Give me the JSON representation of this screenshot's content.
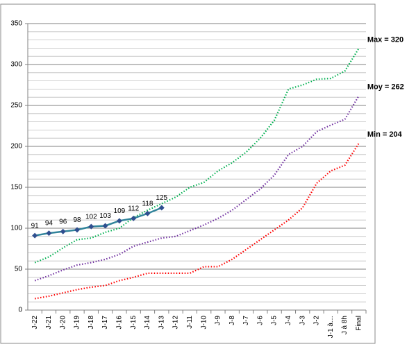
{
  "chart_data": {
    "type": "line",
    "categories": [
      "J-22",
      "J-21",
      "J-20",
      "J-19",
      "J-18",
      "J-17",
      "J-16",
      "J-15",
      "J-14",
      "J-13",
      "J-12",
      "J-11",
      "J-10",
      "J-9",
      "J-8",
      "J-7",
      "J-6",
      "J-5",
      "J-4",
      "J-3",
      "J-2",
      "J-1 à…",
      "J à 8h",
      "Final"
    ],
    "series": [
      {
        "color": "#00b050",
        "dotted": true,
        "end_label": "Max = 320",
        "values": [
          58,
          65,
          76,
          86,
          88,
          95,
          100,
          113,
          122,
          130,
          138,
          150,
          156,
          170,
          180,
          193,
          210,
          232,
          270,
          275,
          282,
          283,
          292,
          320
        ]
      },
      {
        "color": "#7030a0",
        "dotted": true,
        "end_label": "Moy = 262",
        "values": [
          36,
          42,
          49,
          55,
          58,
          62,
          68,
          78,
          83,
          88,
          90,
          97,
          104,
          112,
          122,
          135,
          148,
          165,
          190,
          200,
          218,
          226,
          233,
          262
        ]
      },
      {
        "color": "#ff0000",
        "dotted": true,
        "end_label": "Min = 204",
        "values": [
          14,
          17,
          21,
          25,
          28,
          30,
          36,
          40,
          45,
          45,
          45,
          45,
          53,
          53,
          62,
          74,
          86,
          98,
          110,
          125,
          155,
          170,
          177,
          204
        ]
      },
      {
        "color": "#31849b",
        "marker_color": "#2f4f8f",
        "dotted": false,
        "data_labels": true,
        "values": [
          91,
          94,
          96,
          98,
          102,
          103,
          109,
          112,
          118,
          125,
          null,
          null,
          null,
          null,
          null,
          null,
          null,
          null,
          null,
          null,
          null,
          null,
          null,
          null
        ]
      }
    ],
    "ylim": [
      0,
      350
    ],
    "yticks": [
      0,
      50,
      100,
      150,
      200,
      250,
      300,
      350
    ],
    "yminorticks": [
      10,
      20,
      30,
      40,
      60,
      70,
      80,
      90,
      110,
      120,
      130,
      140,
      160,
      170,
      180,
      190,
      210,
      220,
      230,
      240,
      260,
      270,
      280,
      290,
      310,
      320,
      330,
      340
    ],
    "grid": true
  }
}
